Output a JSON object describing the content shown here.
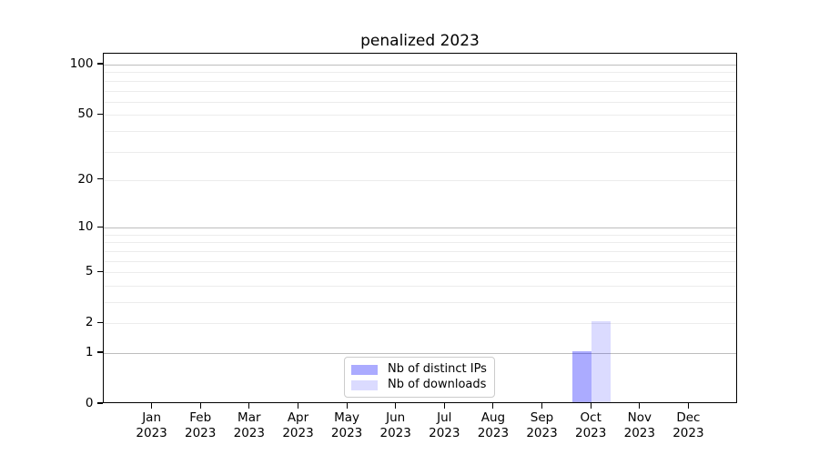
{
  "chart_data": {
    "type": "bar",
    "title": "penalized 2023",
    "categories": [
      "Jan",
      "Feb",
      "Mar",
      "Apr",
      "May",
      "Jun",
      "Jul",
      "Aug",
      "Sep",
      "Oct",
      "Nov",
      "Dec"
    ],
    "x_tick_year": "2023",
    "series": [
      {
        "name": "Nb of distinct IPs",
        "color": "#0000ff",
        "alpha": 0.33,
        "values": [
          0,
          0,
          0,
          0,
          0,
          0,
          0,
          0,
          0,
          1,
          0,
          0
        ]
      },
      {
        "name": "Nb of downloads",
        "color": "#0000ff",
        "alpha": 0.14,
        "values": [
          0,
          0,
          0,
          0,
          0,
          0,
          0,
          0,
          0,
          2,
          0,
          0
        ]
      }
    ],
    "y_scale": "log1p",
    "ylim": [
      0,
      116
    ],
    "y_tick_labels": [
      100,
      50,
      20,
      10,
      5,
      2,
      1,
      0
    ],
    "y_major_gridlines": [
      1,
      10,
      100
    ],
    "y_minor_gridlines": [
      2,
      3,
      4,
      5,
      6,
      7,
      8,
      9,
      20,
      30,
      40,
      50,
      60,
      70,
      80,
      90
    ],
    "grid": "both",
    "legend_position": "lower center",
    "colors": {
      "grid_major": "#bdbdbd",
      "grid_minor": "#ececec",
      "axis": "#000000",
      "legend_border": "#cccccc",
      "background": "#ffffff"
    }
  }
}
